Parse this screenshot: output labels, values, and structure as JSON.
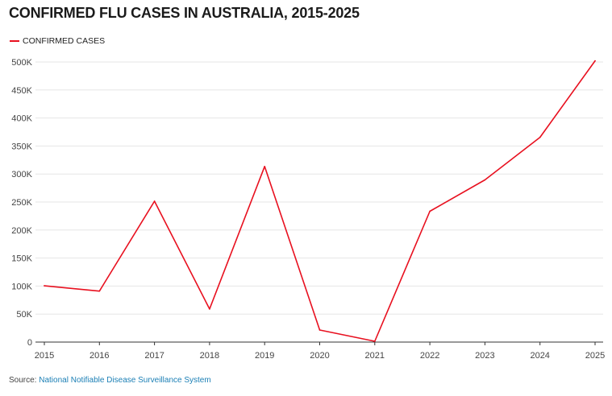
{
  "chart_data": {
    "type": "line",
    "title": "CONFIRMED FLU CASES IN AUSTRALIA, 2015-2025",
    "x": [
      2015,
      2016,
      2017,
      2018,
      2019,
      2020,
      2021,
      2022,
      2023,
      2024,
      2025
    ],
    "x_tick_labels": [
      "2015",
      "2016",
      "2017",
      "2018",
      "2019",
      "2020",
      "2021",
      "2022",
      "2023",
      "2024",
      "2025"
    ],
    "series": [
      {
        "name": "CONFIRMED CASES",
        "color": "#e8101f",
        "values": [
          100500,
          91000,
          251500,
          59000,
          313500,
          21500,
          1500,
          233500,
          289500,
          365500,
          502000
        ]
      }
    ],
    "xlabel": "",
    "ylabel": "",
    "ylim": [
      0,
      500000
    ],
    "y_ticks": [
      0,
      50000,
      100000,
      150000,
      200000,
      250000,
      300000,
      350000,
      400000,
      450000,
      500000
    ],
    "y_tick_labels": [
      "0",
      "50K",
      "100K",
      "150K",
      "200K",
      "250K",
      "300K",
      "350K",
      "400K",
      "450K",
      "500K"
    ],
    "grid": true,
    "legend": "top-left"
  },
  "footer": {
    "source_prefix": "Source: ",
    "source_link": "National Notifiable Disease Surveillance System"
  }
}
